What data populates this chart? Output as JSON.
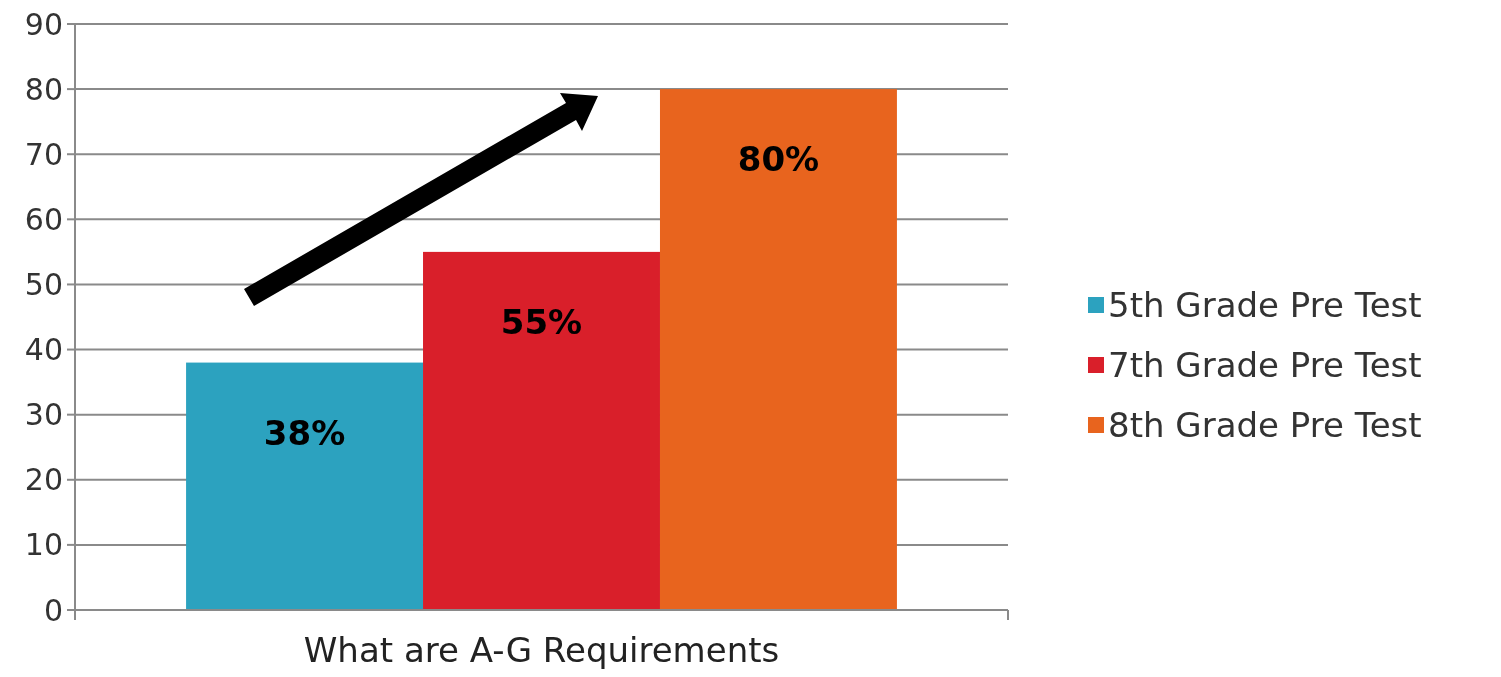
{
  "chart_data": {
    "type": "bar",
    "categories": [
      "What are A-G Requirements"
    ],
    "series": [
      {
        "name": "5th Grade Pre Test",
        "color": "#2ca2bf",
        "values": [
          38
        ],
        "value_labels": [
          "38%"
        ]
      },
      {
        "name": "7th Grade Pre Test",
        "color": "#d91f2a",
        "values": [
          55
        ],
        "value_labels": [
          "55%"
        ]
      },
      {
        "name": "8th Grade Pre Test",
        "color": "#e8641e",
        "values": [
          80
        ],
        "value_labels": [
          "80%"
        ]
      }
    ],
    "ylim": [
      0,
      90
    ],
    "yticks": [
      0,
      10,
      20,
      30,
      40,
      50,
      60,
      70,
      80,
      90
    ],
    "grid": "y",
    "legend": "right"
  }
}
